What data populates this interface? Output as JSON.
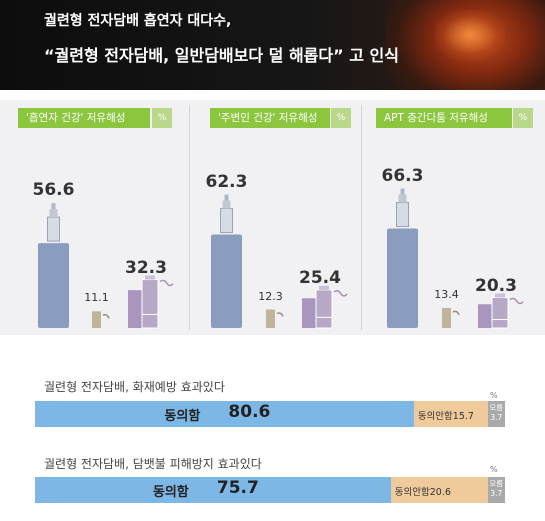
{
  "header": {
    "line1": "궐련형 전자담배 흡연자 대다수,",
    "line2": "“궐련형 전자담배, 일반담배보다 덜 해롭다” 고 인식"
  },
  "colors": {
    "panel_label": "#8cc63f",
    "tall_bar": "#8b9dbf",
    "mid_bar": "#c0b59a",
    "purple_bar": "#b8a8c8",
    "agree": "#7db7e5",
    "disagree": "#efcb9b",
    "dont_know": "#a8a9ab"
  },
  "unit_label": "%",
  "chart_data": [
    {
      "type": "bar",
      "title": "'흡연자 건강' 저유해성",
      "values": [
        56.6,
        11.1,
        32.3
      ],
      "ylim": [
        0,
        70
      ]
    },
    {
      "type": "bar",
      "title": "'주변인 건강' 저유해성",
      "values": [
        62.3,
        12.3,
        25.4
      ],
      "ylim": [
        0,
        70
      ]
    },
    {
      "type": "bar",
      "title": "APT 층간다툼 저유해성",
      "values": [
        66.3,
        13.4,
        20.3
      ],
      "ylim": [
        0,
        70
      ]
    },
    {
      "type": "bar",
      "title": "궐련형 전자담배, 화재예방 효과있다",
      "orientation": "horizontal-stacked",
      "categories": [
        "동의함",
        "동의안함",
        "모름"
      ],
      "values": [
        80.6,
        15.7,
        3.7
      ],
      "labels": {
        "agree": "동의함",
        "disagree": "동의안함",
        "dont_know": "모름"
      }
    },
    {
      "type": "bar",
      "title": "궐련형 전자담배, 담뱃불 피해방지 효과있다",
      "orientation": "horizontal-stacked",
      "categories": [
        "동의함",
        "동의안함",
        "모름"
      ],
      "values": [
        75.7,
        20.6,
        3.7
      ],
      "labels": {
        "agree": "동의함",
        "disagree": "동의안함",
        "dont_know": "모름"
      }
    }
  ]
}
